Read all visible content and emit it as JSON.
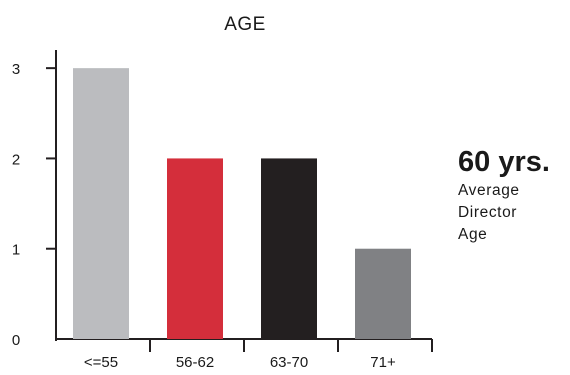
{
  "chart_data": {
    "type": "bar",
    "title": "AGE",
    "xlabel": "",
    "ylabel": "",
    "categories": [
      "<=55",
      "56-62",
      "63-70",
      "71+"
    ],
    "values": [
      3,
      2,
      2,
      1
    ],
    "bar_colors": [
      "#bbbcbf",
      "#d42e3b",
      "#231f20",
      "#808184"
    ],
    "ylim": [
      0,
      3.5
    ],
    "yticks": [
      0,
      1,
      2,
      3
    ],
    "grid": false,
    "legend": "none"
  },
  "stat": {
    "value": "60 yrs.",
    "caption_lines": [
      "Average",
      "Director",
      "Age"
    ]
  }
}
